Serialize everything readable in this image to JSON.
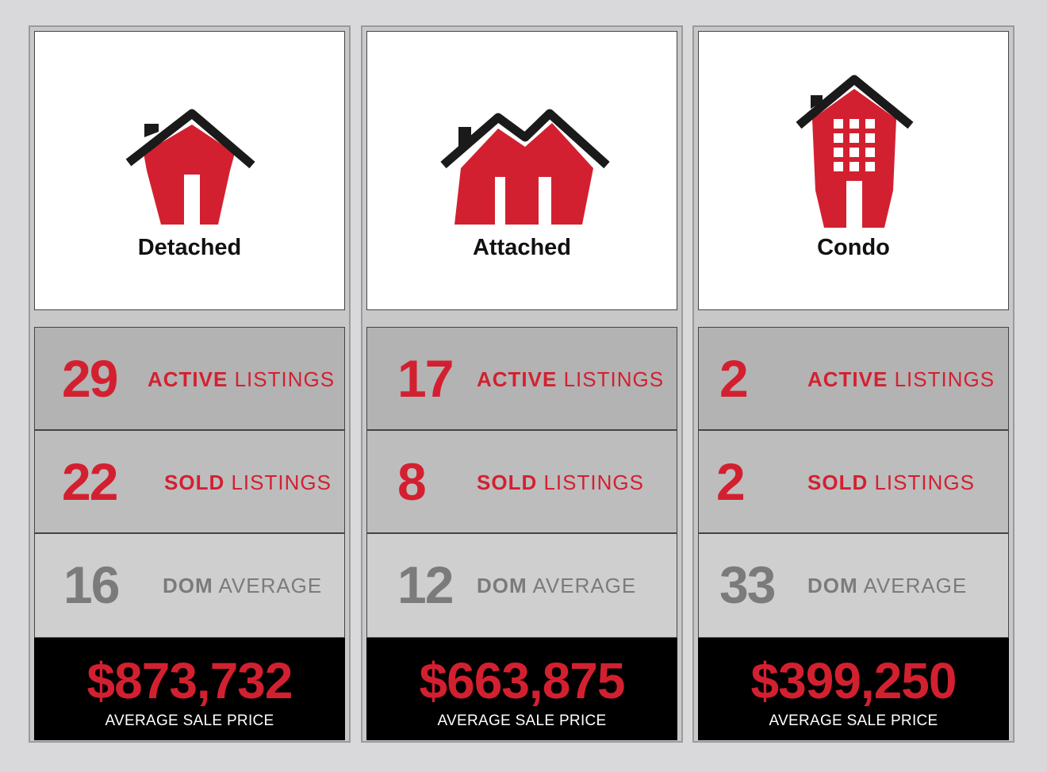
{
  "colors": {
    "accent_red": "#d32030",
    "muted_grey": "#7b7b7b",
    "background": "#d9d8da"
  },
  "cards": [
    {
      "type": "Detached",
      "icon": "detached-house-icon",
      "active": {
        "value": "29",
        "bold": "ACTIVE",
        "rest": "LISTINGS"
      },
      "sold": {
        "value": "22",
        "bold": "SOLD",
        "rest": "LISTINGS"
      },
      "dom": {
        "value": "16",
        "bold": "DOM",
        "rest": "AVERAGE"
      },
      "price": {
        "value": "$873,732",
        "label": "AVERAGE SALE PRICE"
      }
    },
    {
      "type": "Attached",
      "icon": "attached-house-icon",
      "active": {
        "value": "17",
        "bold": "ACTIVE",
        "rest": "LISTINGS"
      },
      "sold": {
        "value": "8",
        "bold": "SOLD",
        "rest": "LISTINGS"
      },
      "dom": {
        "value": "12",
        "bold": "DOM",
        "rest": "AVERAGE"
      },
      "price": {
        "value": "$663,875",
        "label": "AVERAGE SALE PRICE"
      }
    },
    {
      "type": "Condo",
      "icon": "condo-building-icon",
      "active": {
        "value": "2",
        "bold": "ACTIVE",
        "rest": "LISTINGS"
      },
      "sold": {
        "value": "2",
        "bold": "SOLD",
        "rest": "LISTINGS"
      },
      "dom": {
        "value": "33",
        "bold": "DOM",
        "rest": "AVERAGE"
      },
      "price": {
        "value": "$399,250",
        "label": "AVERAGE SALE PRICE"
      }
    }
  ]
}
